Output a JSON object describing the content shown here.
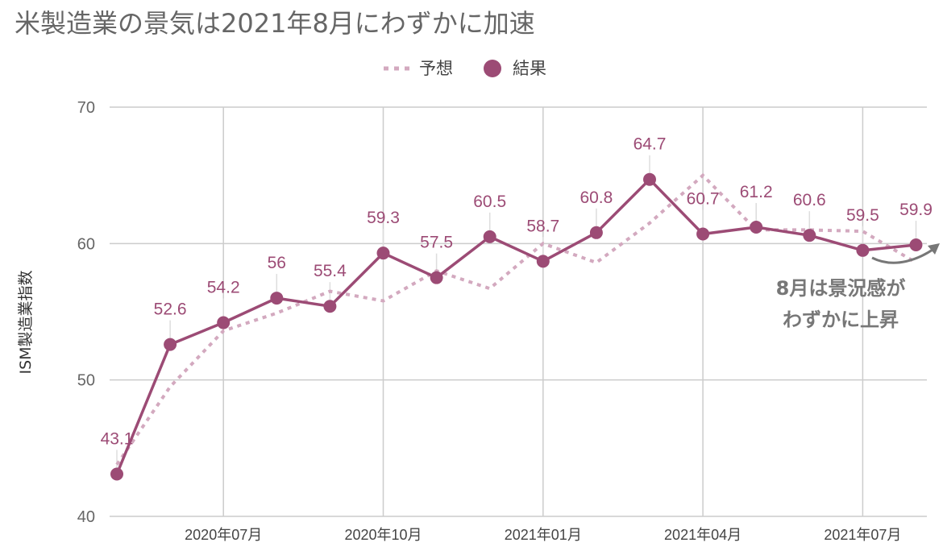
{
  "chart_data": {
    "type": "line",
    "title": "米製造業の景気は2021年8月にわずかに加速",
    "ylabel": "ISM製造業指数",
    "xlabel": "",
    "ylim": [
      40,
      70
    ],
    "yticks": [
      40,
      50,
      60,
      70
    ],
    "x": [
      "2020-05",
      "2020-06",
      "2020-07",
      "2020-08",
      "2020-09",
      "2020-10",
      "2020-11",
      "2020-12",
      "2021-01",
      "2021-02",
      "2021-03",
      "2021-04",
      "2021-05",
      "2021-06",
      "2021-07",
      "2021-08"
    ],
    "xtick_labels": [
      "2020年07月",
      "2020年10月",
      "2021年01月",
      "2021年04月",
      "2021年07月"
    ],
    "xtick_positions": [
      "2020-07",
      "2020-10",
      "2021-01",
      "2021-04",
      "2021-07"
    ],
    "series": [
      {
        "name": "予想",
        "style": "dotted",
        "color": "#d3a9bf",
        "values": [
          43.8,
          49.5,
          53.6,
          54.9,
          56.5,
          55.8,
          58.0,
          56.7,
          60.0,
          58.6,
          61.5,
          65.0,
          61.0,
          61.0,
          60.9,
          58.6
        ]
      },
      {
        "name": "結果",
        "style": "solid",
        "color": "#9c4b75",
        "values": [
          43.1,
          52.6,
          54.2,
          56.0,
          55.4,
          59.3,
          57.5,
          60.5,
          58.7,
          60.8,
          64.7,
          60.7,
          61.2,
          60.6,
          59.5,
          59.9
        ],
        "data_labels": [
          "43.1",
          "52.6",
          "54.2",
          "56",
          "55.4",
          "59.3",
          "57.5",
          "60.5",
          "58.7",
          "60.8",
          "64.7",
          "60.7",
          "61.2",
          "60.6",
          "59.5",
          "59.9"
        ]
      }
    ],
    "legend": {
      "placement": "top-center",
      "items": [
        {
          "label": "予想",
          "marker": "dotted-line"
        },
        {
          "label": "結果",
          "marker": "circle"
        }
      ]
    },
    "annotation": {
      "lines": [
        "8月は景況感が",
        "わずかに上昇"
      ],
      "arrow_color": "#777777"
    },
    "grid": true
  }
}
